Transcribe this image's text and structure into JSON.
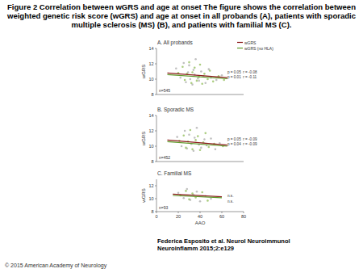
{
  "figure_title": [
    "Figure 2 Correlation between wGRS and age at onset The figure shows the correlation between",
    "weighted genetic risk score (wGRS) and age at onset in all probands (A), patients with sporadic",
    "multiple sclerosis (MS) (B), and patients with familial MS (C)."
  ],
  "citation": [
    "Federica Esposito et al. Neurol Neuroimmunol",
    "Neuroinflamm 2015;2:e129"
  ],
  "copyright": "© 2015 American Academy of Neurology",
  "chart_data": [
    {
      "type": "scatter",
      "title": "A. All probands",
      "y_label": "wGRS",
      "xlim": [
        0,
        80
      ],
      "ylim": [
        8,
        14
      ],
      "yticks": [
        8,
        10,
        12,
        14
      ],
      "tick_labels": "y",
      "legend": "right",
      "annotations": [
        "n=545",
        "p = 0.05  r = -0.08",
        "p = 0.01  r = -0.11"
      ],
      "series": [
        {
          "type": "scatter",
          "marker": "circle",
          "color": "#b5b5b5",
          "x": [
            18,
            22,
            25,
            27,
            29,
            30,
            31,
            33,
            34,
            35,
            36,
            38,
            39,
            41,
            43,
            45,
            48,
            50,
            55,
            60
          ],
          "values": [
            11.4,
            10.2,
            12.1,
            9.6,
            10.9,
            11.8,
            10.0,
            9.3,
            11.2,
            10.6,
            12.6,
            10.1,
            9.8,
            11.0,
            10.4,
            9.5,
            11.3,
            10.2,
            9.9,
            10.5
          ]
        },
        {
          "type": "scatter",
          "marker": "circle",
          "color": "#9cc46a",
          "x": [
            20,
            24,
            26,
            28,
            30,
            32,
            33,
            35,
            37,
            39,
            40,
            42,
            44,
            47,
            49,
            52,
            57,
            62
          ],
          "values": [
            10.8,
            11.6,
            9.9,
            10.7,
            12.2,
            9.5,
            10.9,
            11.5,
            9.8,
            10.3,
            11.9,
            9.4,
            10.7,
            10.0,
            11.1,
            9.7,
            10.4,
            9.9
          ]
        },
        {
          "type": "line",
          "name": "wGRS",
          "color": "#8b1a1a",
          "line_style": "solid",
          "x": [
            10,
            65
          ],
          "values": [
            10.8,
            10.2
          ]
        },
        {
          "type": "line",
          "name": "wGRS (no HLA)",
          "color": "#5f9a2a",
          "line_style": "solid",
          "x": [
            10,
            65
          ],
          "values": [
            10.6,
            10.05
          ]
        }
      ]
    },
    {
      "type": "scatter",
      "title": "B. Sporadic MS",
      "y_label": "wGRS",
      "xlim": [
        0,
        80
      ],
      "ylim": [
        8,
        14
      ],
      "yticks": [
        8,
        10,
        12,
        14
      ],
      "tick_labels": "y",
      "annotations": [
        "n=452",
        "p = 0.05  r = -0.09",
        "p = 0.04  r = -0.09"
      ],
      "series": [
        {
          "type": "scatter",
          "marker": "circle",
          "color": "#b5b5b5",
          "x": [
            19,
            23,
            26,
            28,
            30,
            32,
            34,
            35,
            37,
            39,
            41,
            44,
            46,
            50,
            54,
            58
          ],
          "values": [
            11.2,
            10.0,
            12.0,
            9.7,
            11.5,
            10.3,
            9.4,
            11.1,
            12.4,
            10.2,
            9.8,
            10.9,
            10.1,
            11.0,
            9.6,
            10.4
          ]
        },
        {
          "type": "scatter",
          "marker": "circle",
          "color": "#9cc46a",
          "x": [
            21,
            25,
            27,
            29,
            31,
            33,
            36,
            38,
            40,
            43,
            45,
            48,
            53,
            61
          ],
          "values": [
            10.7,
            11.4,
            9.8,
            10.6,
            12.1,
            9.6,
            10.8,
            11.3,
            9.5,
            10.5,
            11.7,
            9.9,
            10.3,
            10.0
          ]
        },
        {
          "type": "line",
          "color": "#8b1a1a",
          "line_style": "solid",
          "x": [
            10,
            65
          ],
          "values": [
            10.8,
            10.15
          ]
        },
        {
          "type": "line",
          "color": "#5f9a2a",
          "line_style": "solid",
          "x": [
            10,
            65
          ],
          "values": [
            10.6,
            10.0
          ]
        }
      ]
    },
    {
      "type": "scatter",
      "title": "C. Familial MS",
      "y_label": "wGRS",
      "x_label": "AAO",
      "xlim": [
        0,
        80
      ],
      "ylim": [
        8,
        13
      ],
      "xticks": [
        0,
        20,
        40,
        60,
        80
      ],
      "yticks": [
        8,
        10,
        12
      ],
      "annotations": [
        "n=93",
        "n.s.",
        "n.s."
      ],
      "series": [
        {
          "type": "scatter",
          "marker": "circle",
          "color": "#b5b5b5",
          "x": [
            20,
            25,
            28,
            31,
            34,
            37,
            40,
            45,
            50
          ],
          "values": [
            10.9,
            10.1,
            11.5,
            9.8,
            10.6,
            11.1,
            9.6,
            10.4,
            10.0
          ]
        },
        {
          "type": "scatter",
          "marker": "circle",
          "color": "#9cc46a",
          "x": [
            22,
            27,
            30,
            33,
            36,
            42,
            47
          ],
          "values": [
            10.5,
            11.2,
            9.9,
            10.8,
            10.2,
            11.0,
            9.7
          ]
        },
        {
          "type": "line",
          "color": "#8b1a1a",
          "line_style": "solid",
          "x": [
            15,
            60
          ],
          "values": [
            10.7,
            10.3
          ]
        },
        {
          "type": "line",
          "color": "#5f9a2a",
          "line_style": "solid",
          "x": [
            15,
            60
          ],
          "values": [
            10.5,
            10.15
          ]
        }
      ]
    }
  ]
}
